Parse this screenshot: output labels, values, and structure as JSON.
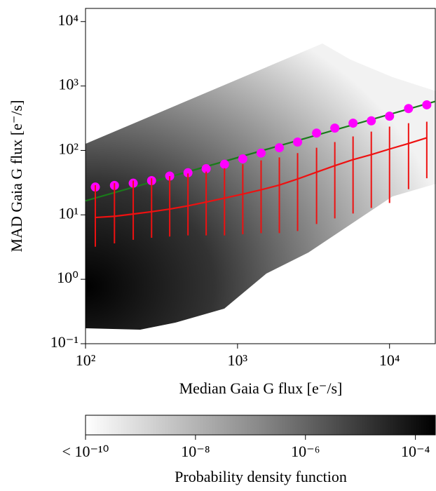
{
  "chart_data": {
    "type": "histogram2d",
    "xlabel": "Median Gaia G flux [e⁻/s]",
    "ylabel": "MAD Gaia G flux [e⁻/s]",
    "xscale": "log",
    "yscale": "log",
    "xlim": [
      100,
      20000
    ],
    "ylim": [
      0.1,
      16000
    ],
    "xticks": [
      {
        "value": 100,
        "label": "10²"
      },
      {
        "value": 1000,
        "label": "10³"
      },
      {
        "value": 10000,
        "label": "10⁴"
      }
    ],
    "yticks": [
      {
        "value": 0.1,
        "label": "10⁻¹"
      },
      {
        "value": 1,
        "label": "10⁰"
      },
      {
        "value": 10,
        "label": "10¹"
      },
      {
        "value": 100,
        "label": "10²"
      },
      {
        "value": 1000,
        "label": "10³"
      },
      {
        "value": 10000,
        "label": "10⁴"
      }
    ],
    "x": [
      116,
      155,
      206,
      272,
      358,
      472,
      622,
      821,
      1083,
      1429,
      1884,
      2484,
      3311,
      4365,
      5754,
      7586,
      10000,
      13335,
      17580
    ],
    "series": [
      {
        "type": "scatter",
        "color": "#ff00ff",
        "values": [
          27,
          28.6,
          31,
          34,
          40,
          45,
          52,
          61,
          74,
          91,
          110,
          135,
          186,
          222,
          265,
          288,
          340,
          447,
          510
        ]
      },
      {
        "type": "errorbar-line",
        "color": "#ee1111",
        "values": [
          9.1,
          9.5,
          10.3,
          11.2,
          12.3,
          13.8,
          15.8,
          18.2,
          21,
          24.5,
          29,
          36,
          46,
          58,
          72,
          86,
          105,
          128,
          157
        ],
        "lower": [
          3.2,
          3.6,
          4.1,
          4.4,
          4.6,
          4.8,
          4.8,
          4.8,
          5.0,
          5.2,
          5.2,
          5.6,
          7.2,
          8.8,
          10.5,
          12.8,
          15.3,
          25,
          37
        ],
        "upper": [
          29,
          31,
          34,
          37,
          40,
          44,
          47,
          53,
          61,
          70,
          78,
          91,
          110,
          135,
          165,
          196,
          234,
          265,
          279
        ]
      },
      {
        "type": "line",
        "color": "#1a7a1a",
        "x": [
          100,
          20000
        ],
        "values": [
          16.5,
          577
        ]
      }
    ],
    "colorbar": {
      "label": "Probability density function",
      "scale": "log",
      "lim": [
        1e-10,
        0.00023
      ],
      "ticks": [
        {
          "value": 1e-10,
          "label": "< 10⁻¹⁰"
        },
        {
          "value": 1e-08,
          "label": "10⁻⁸"
        },
        {
          "value": 1e-06,
          "label": "10⁻⁶"
        },
        {
          "value": 0.0001,
          "label": "10⁻⁴"
        }
      ]
    }
  }
}
